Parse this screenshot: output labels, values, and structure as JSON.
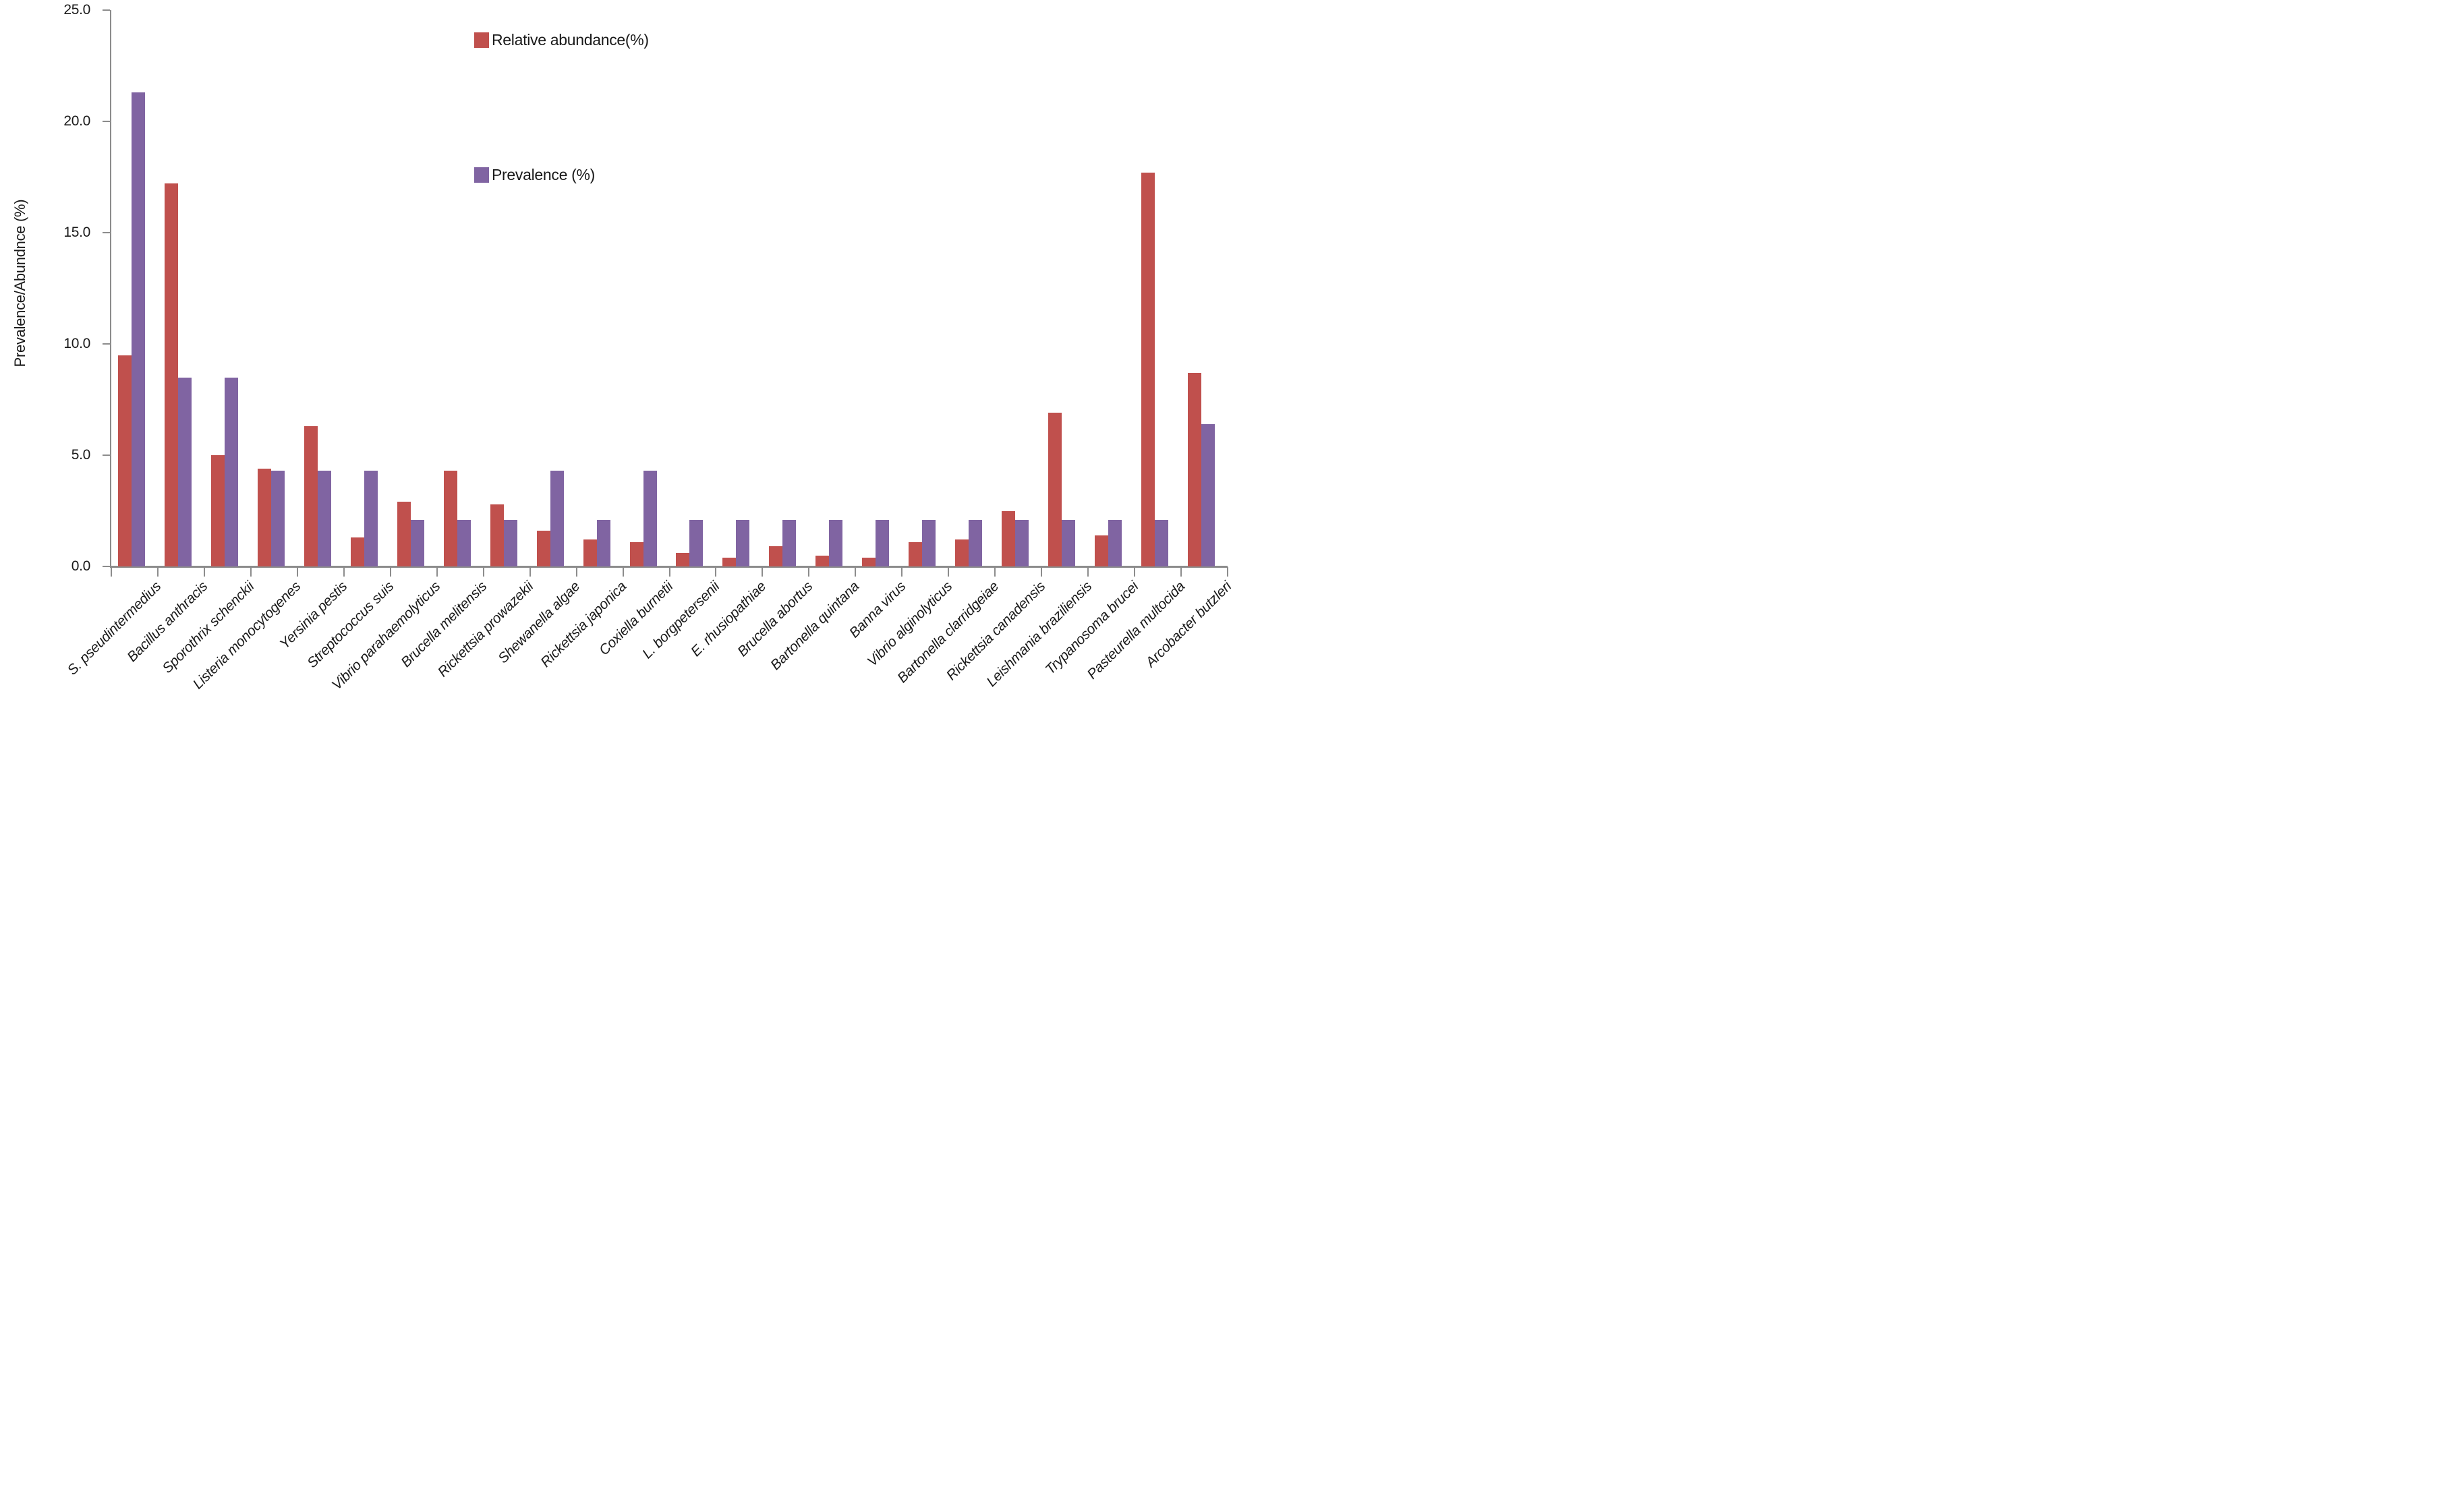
{
  "chart_data": {
    "type": "bar",
    "title": "",
    "xlabel": "",
    "ylabel": "Prevalence/Abundnce (%)",
    "ylim": [
      0,
      25
    ],
    "ytick_step": 5,
    "ytick_labels": [
      "0.0",
      "5.0",
      "10.0",
      "15.0",
      "20.0",
      "25.0"
    ],
    "grid": false,
    "legend_position": "top-center",
    "categories": [
      "S. pseudintermedius",
      "Bacillus anthracis",
      "Sporothrix schenckii",
      "Listeria monocytogenes",
      "Yersinia pestis",
      "Streptococcus suis",
      "Vibrio parahaemolyticus",
      "Brucella melitensis",
      "Rickettsia prowazekii",
      "Shewanella algae",
      "Rickettsia japonica",
      "Coxiella burnetii",
      "L. borgpetersenii",
      "E. rhusiopathiae",
      "Brucella abortus",
      "Bartonella quintana",
      "Banna virus",
      "Vibrio alginolyticus",
      "Bartonella clarridgeiae",
      "Rickettsia canadensis",
      "Leishmania braziliensis",
      "Trypanosoma brucei",
      "Pasteurella multocida",
      "Arcobacter butzleri"
    ],
    "series": [
      {
        "name": "Relative abundance(%)",
        "color": "#C0504D",
        "values": [
          9.5,
          17.2,
          5.0,
          4.4,
          6.3,
          1.3,
          2.9,
          4.3,
          2.8,
          1.6,
          1.2,
          1.1,
          0.6,
          0.4,
          0.9,
          0.5,
          0.4,
          1.1,
          1.2,
          2.5,
          6.9,
          1.4,
          17.7,
          8.7
        ]
      },
      {
        "name": "Prevalence (%)",
        "color": "#8064A2",
        "values": [
          21.3,
          8.5,
          8.5,
          4.3,
          4.3,
          4.3,
          2.1,
          2.1,
          2.1,
          4.3,
          2.1,
          4.3,
          2.1,
          2.1,
          2.1,
          2.1,
          2.1,
          2.1,
          2.1,
          2.1,
          2.1,
          2.1,
          2.1,
          6.4
        ]
      }
    ]
  },
  "style": {
    "axis_color": "#8c8c8c",
    "text_color": "#1a1a1a",
    "background": "#ffffff"
  }
}
